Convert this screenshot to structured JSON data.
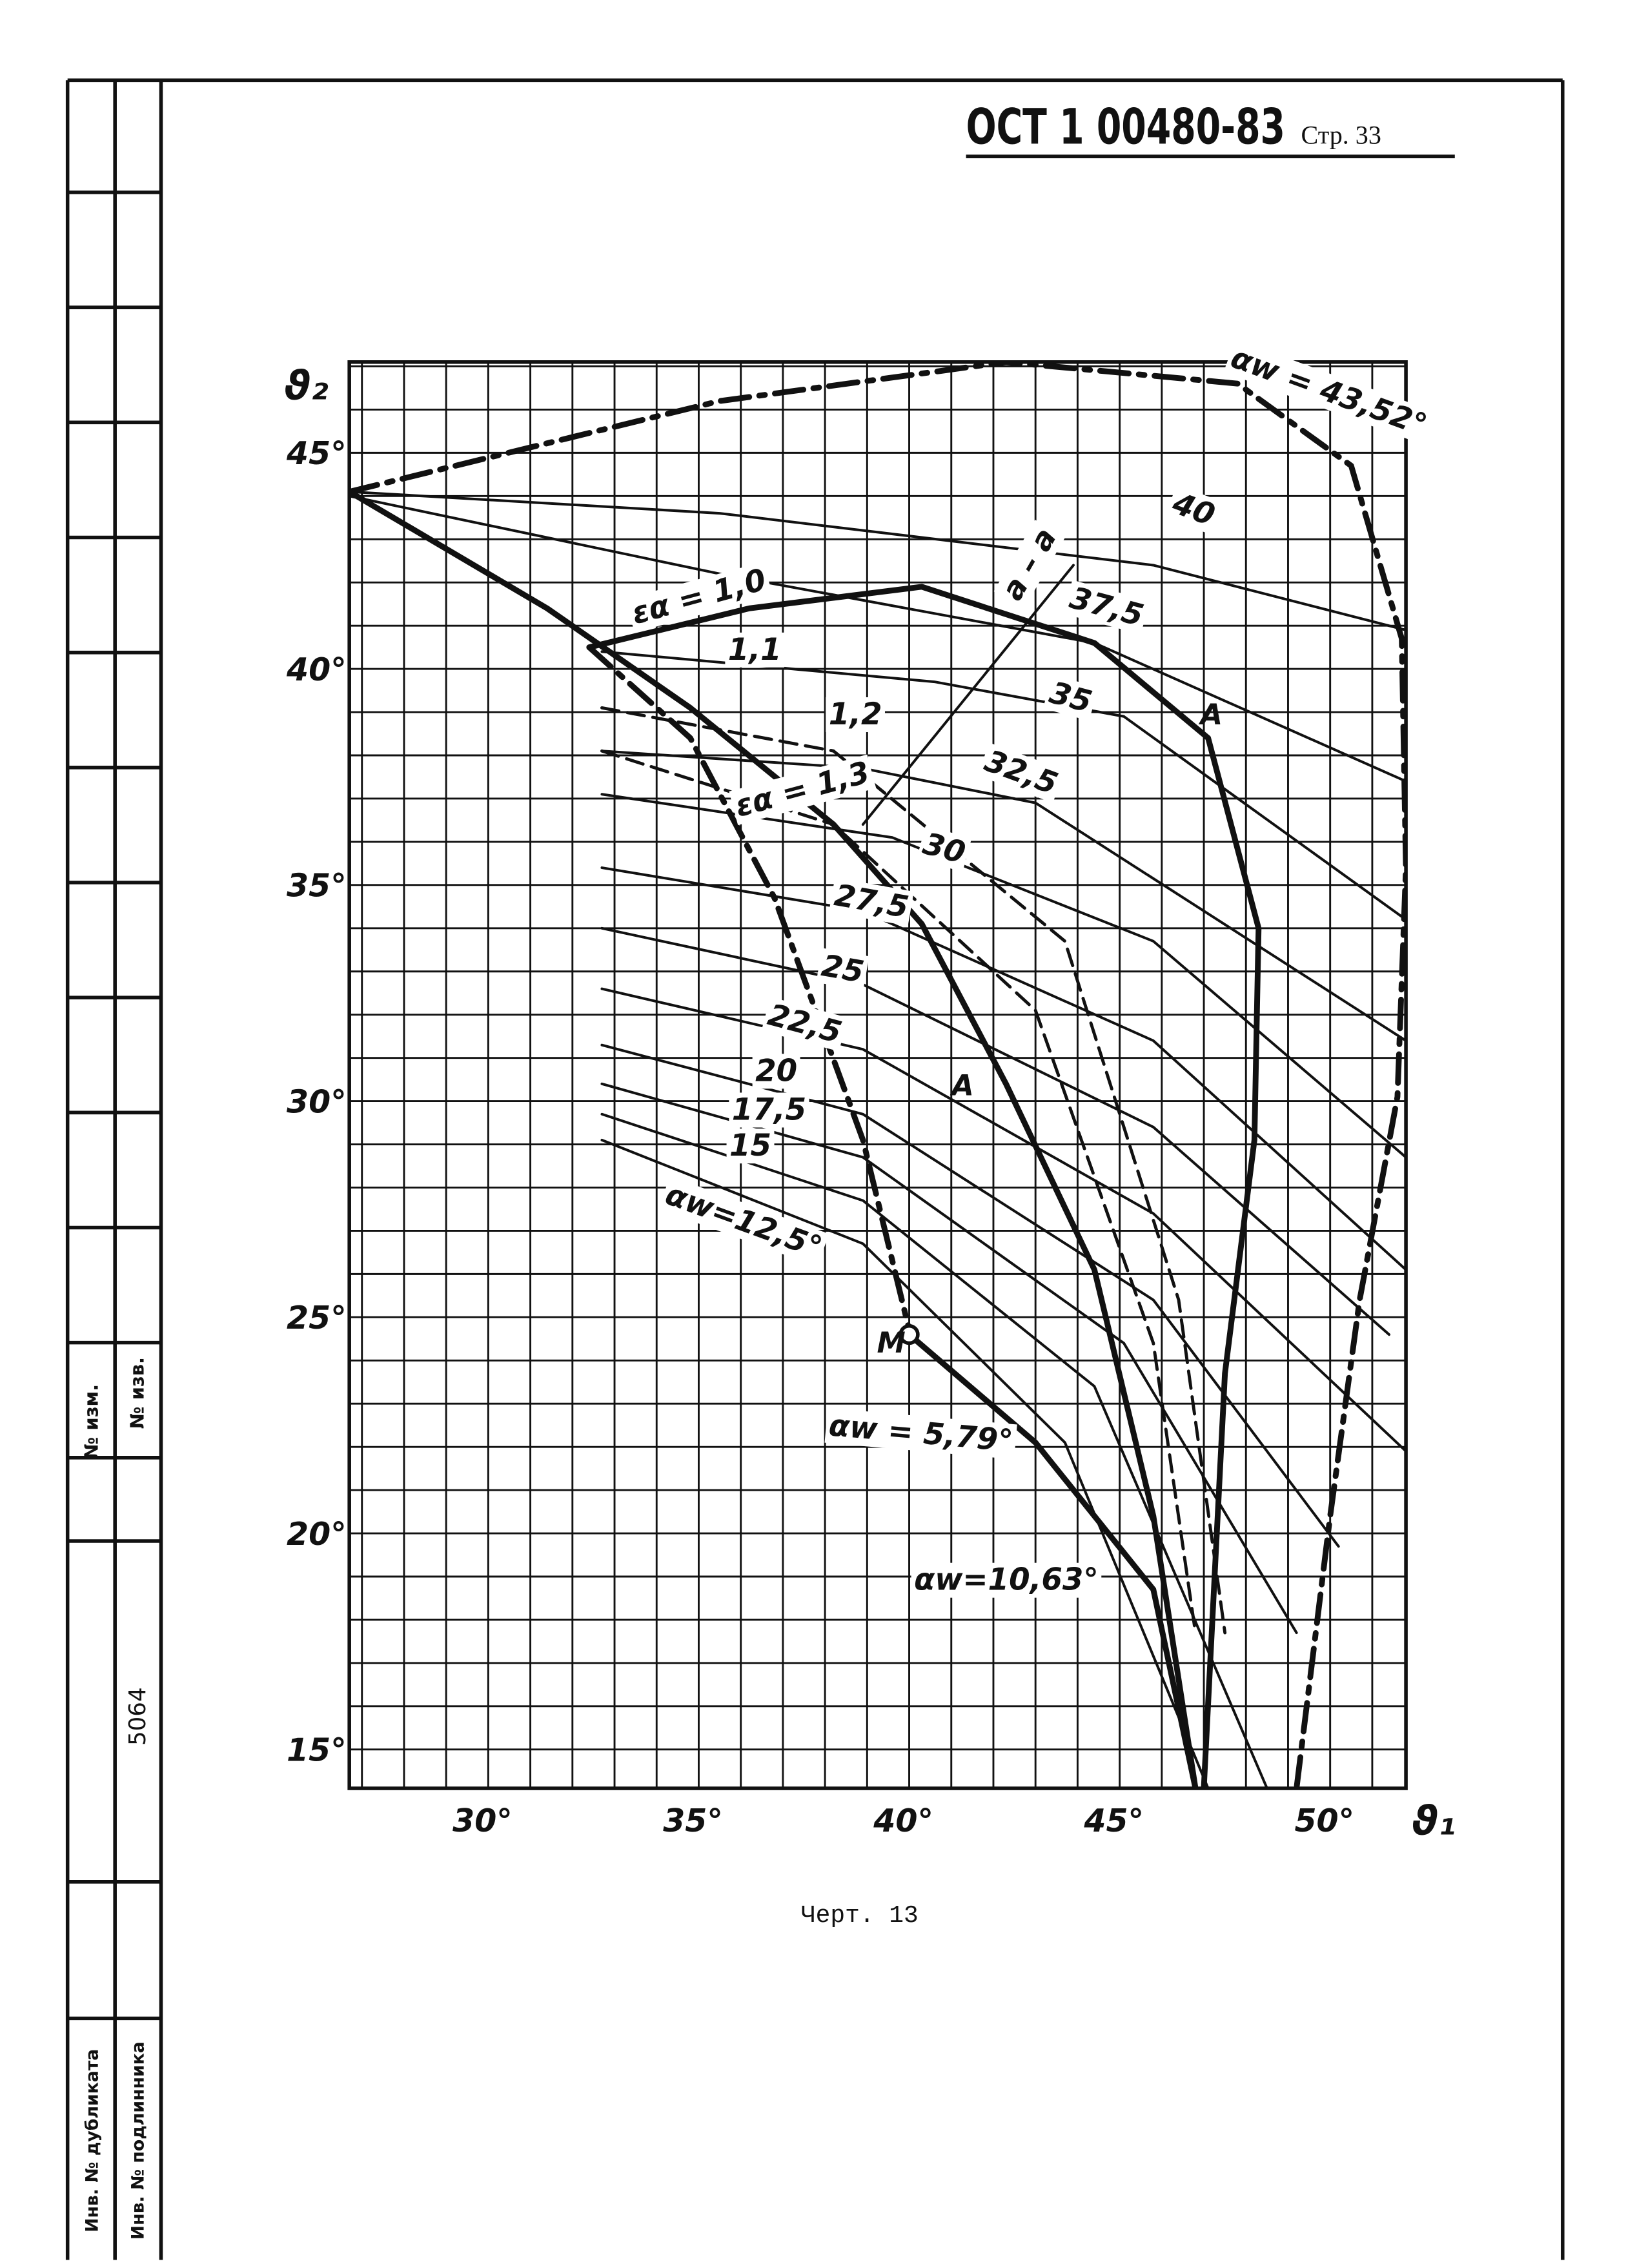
{
  "header": {
    "code": "ОСТ 1 00480-83",
    "page": "Стр. 33"
  },
  "caption": "Черт. 13",
  "stamp": {
    "change_no": "№ изм.",
    "notice_no": "№ изв.",
    "number": "5064",
    "duplicate_inv": "Инв. № дубликата",
    "original_inv": "Инв. № подлинника"
  },
  "chart_data": {
    "type": "line",
    "x_label": "ϑ₁",
    "y_label": "ϑ₂",
    "xlim": [
      26.7,
      51.8
    ],
    "ylim": [
      14.1,
      47.1
    ],
    "xticks": [
      {
        "value": 30,
        "label": "30°"
      },
      {
        "value": 35,
        "label": "35°"
      },
      {
        "value": 40,
        "label": "40°"
      },
      {
        "value": 45,
        "label": "45°"
      },
      {
        "value": 50,
        "label": "50°"
      }
    ],
    "yticks": [
      {
        "value": 15,
        "label": "15°"
      },
      {
        "value": 20,
        "label": "20°"
      },
      {
        "value": 25,
        "label": "25°"
      },
      {
        "value": 30,
        "label": "30°"
      },
      {
        "value": 35,
        "label": "35°"
      },
      {
        "value": 40,
        "label": "40°"
      },
      {
        "value": 45,
        "label": "45°"
      }
    ],
    "xminorticks": [
      27,
      28,
      29,
      31,
      32,
      33,
      34,
      36,
      37,
      38,
      39,
      41,
      42,
      43,
      44,
      46,
      47,
      48,
      49,
      51
    ],
    "yminorticks": [
      16,
      17,
      18,
      19,
      21,
      22,
      23,
      24,
      26,
      27,
      28,
      29,
      31,
      32,
      33,
      34,
      36,
      37,
      38,
      39,
      41,
      42,
      43,
      44,
      46,
      47
    ],
    "grid": true,
    "series": [
      {
        "name": "40",
        "color": "#111111",
        "style": "thin",
        "x": [
          26.7,
          35.5,
          45.8,
          51.8
        ],
        "values": [
          44.1,
          43.6,
          42.4,
          40.9
        ]
      },
      {
        "name": "37,5",
        "color": "#111111",
        "style": "thin",
        "x": [
          26.7,
          35.5,
          44.4,
          51.8
        ],
        "values": [
          44.0,
          42.2,
          40.6,
          37.4
        ]
      },
      {
        "name": "35",
        "color": "#111111",
        "style": "thin",
        "x": [
          32.7,
          40.6,
          45.1,
          51.8
        ],
        "values": [
          40.4,
          39.7,
          38.9,
          34.2
        ]
      },
      {
        "name": "32,5",
        "color": "#111111",
        "style": "thin",
        "x": [
          32.7,
          38.9,
          43.0,
          51.8
        ],
        "values": [
          38.1,
          37.7,
          36.9,
          31.4
        ]
      },
      {
        "name": "30",
        "color": "#111111",
        "style": "thin",
        "x": [
          32.7,
          39.6,
          45.8,
          51.8
        ],
        "values": [
          37.1,
          36.1,
          33.7,
          28.7
        ]
      },
      {
        "name": "27,5",
        "color": "#111111",
        "style": "thin",
        "x": [
          32.7,
          38.9,
          45.8,
          51.8
        ],
        "values": [
          35.4,
          34.4,
          31.4,
          26.1
        ]
      },
      {
        "name": "25",
        "color": "#111111",
        "style": "thin",
        "x": [
          32.7,
          38.9,
          45.8,
          51.4
        ],
        "values": [
          34.0,
          32.7,
          29.4,
          24.6
        ]
      },
      {
        "name": "22,5",
        "color": "#111111",
        "style": "thin",
        "x": [
          32.7,
          38.9,
          45.8,
          51.8
        ],
        "values": [
          32.6,
          31.2,
          27.4,
          21.9
        ]
      },
      {
        "name": "20",
        "color": "#111111",
        "style": "thin",
        "x": [
          32.7,
          38.9,
          45.8,
          50.2
        ],
        "values": [
          31.3,
          29.7,
          25.4,
          19.7
        ]
      },
      {
        "name": "17,5",
        "color": "#111111",
        "style": "thin",
        "x": [
          32.7,
          38.9,
          45.1,
          49.2
        ],
        "values": [
          30.4,
          28.7,
          24.4,
          17.7
        ]
      },
      {
        "name": "15",
        "color": "#111111",
        "style": "thin",
        "x": [
          32.7,
          38.9,
          44.4,
          48.5
        ],
        "values": [
          29.7,
          27.7,
          23.4,
          14.1
        ]
      },
      {
        "name": "αw=12,5°",
        "color": "#111111",
        "style": "thin",
        "x": [
          32.7,
          38.9,
          43.7,
          47.1
        ],
        "values": [
          29.1,
          26.7,
          22.1,
          14.1
        ]
      },
      {
        "name": "αw = 43,52°",
        "color": "#111111",
        "style": "dashdot",
        "x": [
          26.7,
          35.5,
          42.3,
          47.8,
          50.5,
          51.7,
          51.8,
          51.6,
          50.7,
          50.0,
          49.2
        ],
        "values": [
          44.1,
          46.2,
          47.1,
          46.6,
          44.7,
          40.7,
          35.4,
          30.1,
          25.4,
          20.4,
          14.1
        ]
      },
      {
        "name": "εα = 1,0",
        "color": "#111111",
        "style": "thick",
        "x": [
          32.4,
          36.2,
          40.3,
          44.4,
          47.1,
          48.3,
          48.2,
          47.5,
          47.0
        ],
        "values": [
          40.5,
          41.4,
          41.9,
          40.6,
          38.4,
          34.0,
          29.1,
          23.7,
          14.1
        ]
      },
      {
        "name": "1,1",
        "color": "#111111",
        "style": "dashed",
        "x": [
          32.7,
          38.2,
          43.7,
          46.4,
          47.5
        ],
        "values": [
          39.1,
          38.1,
          33.7,
          25.4,
          17.7
        ]
      },
      {
        "name": "1,2",
        "color": "#111111",
        "style": "dashed",
        "x": [
          32.7,
          38.2,
          43.0,
          45.8,
          46.8
        ],
        "values": [
          38.1,
          36.4,
          32.1,
          24.4,
          17.7
        ]
      },
      {
        "name": "εα = 1,3",
        "color": "#111111",
        "style": "thick",
        "x": [
          26.7,
          31.4,
          34.8,
          38.2,
          40.3,
          42.3,
          44.4,
          45.8,
          46.8
        ],
        "values": [
          44.1,
          41.4,
          39.1,
          36.4,
          34.1,
          30.4,
          26.1,
          20.4,
          14.1
        ]
      },
      {
        "name": "αw = 5,79°",
        "color": "#111111",
        "style": "thick",
        "marker": "open-circle-start",
        "x": [
          40.0,
          43.0,
          45.8,
          46.8
        ],
        "values": [
          24.6,
          22.1,
          18.7,
          14.1
        ]
      },
      {
        "name": "αw=10,63°",
        "color": "#111111",
        "style": "dashdot",
        "x": [
          32.4,
          34.8,
          36.8,
          38.9,
          40.0
        ],
        "values": [
          40.5,
          38.4,
          34.7,
          29.1,
          24.7
        ]
      },
      {
        "name": "a – a",
        "color": "#111111",
        "style": "thin",
        "x": [
          38.9,
          43.9
        ],
        "values": [
          36.4,
          42.4
        ]
      }
    ],
    "annotations": [
      "A",
      "A",
      "M"
    ]
  }
}
